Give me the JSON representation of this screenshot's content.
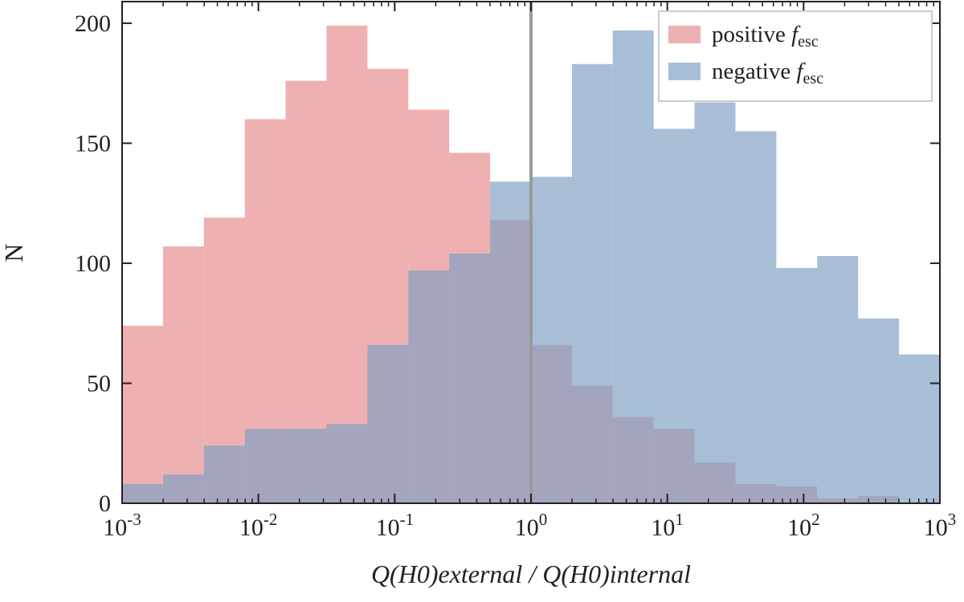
{
  "chart_data": {
    "type": "histogram",
    "x_label": "Q(H0)external / Q(H0)internal",
    "y_label": "N",
    "x_log": true,
    "bins": [
      0.001,
      0.0019953,
      0.0039811,
      0.0079433,
      0.015849,
      0.031623,
      0.063096,
      0.12589,
      0.25119,
      0.50119,
      1,
      1.9953,
      3.9811,
      7.9433,
      15.849,
      31.623,
      63.096,
      125.89,
      251.19,
      501.19,
      1000
    ],
    "series": [
      {
        "name": "positive fesc",
        "color": "#e88a8e",
        "values": [
          74,
          107,
          119,
          160,
          176,
          199,
          181,
          164,
          146,
          118,
          66,
          49,
          36,
          31,
          17,
          8,
          7,
          2,
          3,
          0
        ]
      },
      {
        "name": "negative fesc",
        "color": "#7f9fc4",
        "values": [
          8,
          12,
          24,
          31,
          31,
          33,
          66,
          97,
          104,
          134,
          136,
          183,
          197,
          156,
          167,
          155,
          98,
          103,
          77,
          62
        ]
      }
    ],
    "opacity": 0.68,
    "reference_line": 1,
    "reference_color": "#999999",
    "xlim": [
      0.001,
      1000
    ],
    "xticks": [
      {
        "value": 0.001,
        "label": "10-3"
      },
      {
        "value": 0.01,
        "label": "10-2"
      },
      {
        "value": 0.1,
        "label": "10-1"
      },
      {
        "value": 1,
        "label": "100"
      },
      {
        "value": 10,
        "label": "101"
      },
      {
        "value": 100,
        "label": "102"
      },
      {
        "value": 1000,
        "label": "103"
      }
    ],
    "ylim": [
      0,
      209
    ],
    "yticks": [
      0,
      50,
      100,
      150,
      200
    ],
    "legend": "upper right"
  }
}
